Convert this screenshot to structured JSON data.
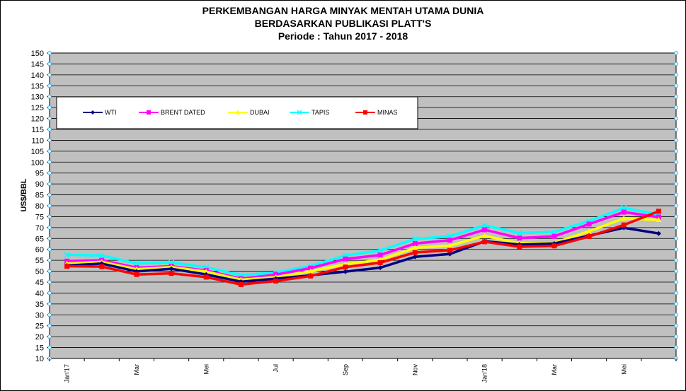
{
  "chart_data": {
    "type": "line",
    "title": [
      "PERKEMBANGAN HARGA MINYAK MENTAH UTAMA DUNIA",
      "BERDASARKAN PUBLIKASI PLATT'S",
      "Periode :  Tahun 2017 - 2018"
    ],
    "ylabel": "US$/BBL",
    "xlabel": "",
    "ylim": [
      10,
      150
    ],
    "yticks": [
      10,
      15,
      20,
      25,
      30,
      35,
      40,
      45,
      50,
      55,
      60,
      65,
      70,
      75,
      80,
      85,
      90,
      95,
      100,
      105,
      110,
      115,
      120,
      125,
      130,
      135,
      140,
      145,
      150
    ],
    "x_labels": [
      {
        "index": 0,
        "text": "Jan'17"
      },
      {
        "index": 2,
        "text": "Mar"
      },
      {
        "index": 4,
        "text": "Mei"
      },
      {
        "index": 6,
        "text": "Jul"
      },
      {
        "index": 8,
        "text": "Sep"
      },
      {
        "index": 10,
        "text": "Nov"
      },
      {
        "index": 12,
        "text": "Jan'18"
      },
      {
        "index": 14,
        "text": "Mar"
      },
      {
        "index": 16,
        "text": "Mei"
      }
    ],
    "n_points": 18,
    "grid": true,
    "legend_position": "top-left",
    "background": "#c0c0c0",
    "series": [
      {
        "name": "WTI",
        "color": "#000080",
        "marker": "diamond",
        "values": [
          52.6,
          53.5,
          49.9,
          51.1,
          48.5,
          45.2,
          46.6,
          48.1,
          49.8,
          51.6,
          56.6,
          57.9,
          63.7,
          62.2,
          62.7,
          66.3,
          69.9,
          67.3
        ]
      },
      {
        "name": "BRENT DATED",
        "color": "#ff00ff",
        "marker": "square",
        "values": [
          54.6,
          55.0,
          51.6,
          52.3,
          50.3,
          46.6,
          48.4,
          51.4,
          55.6,
          57.4,
          62.7,
          64.2,
          69.0,
          65.2,
          66.0,
          71.6,
          77.1,
          74.8
        ]
      },
      {
        "name": "DUBAI",
        "color": "#ffff00",
        "marker": "triangle",
        "values": [
          53.5,
          54.3,
          50.9,
          51.9,
          49.8,
          46.1,
          47.3,
          50.0,
          53.2,
          55.2,
          60.7,
          61.7,
          66.2,
          62.8,
          63.0,
          68.3,
          74.2,
          73.5
        ]
      },
      {
        "name": "TAPIS",
        "color": "#00ffff",
        "marker": "cross",
        "values": [
          57.5,
          57.2,
          53.6,
          54.0,
          51.8,
          48.2,
          49.4,
          52.4,
          57.2,
          59.5,
          64.8,
          66.0,
          71.0,
          67.5,
          68.0,
          73.0,
          79.0,
          76.0
        ]
      },
      {
        "name": "MINAS",
        "color": "#ff0000",
        "marker": "square",
        "values": [
          52.3,
          52.1,
          48.5,
          49.0,
          47.3,
          43.9,
          45.5,
          47.8,
          51.9,
          53.9,
          58.6,
          59.6,
          63.5,
          61.2,
          61.6,
          65.9,
          71.2,
          77.5
        ]
      }
    ]
  }
}
